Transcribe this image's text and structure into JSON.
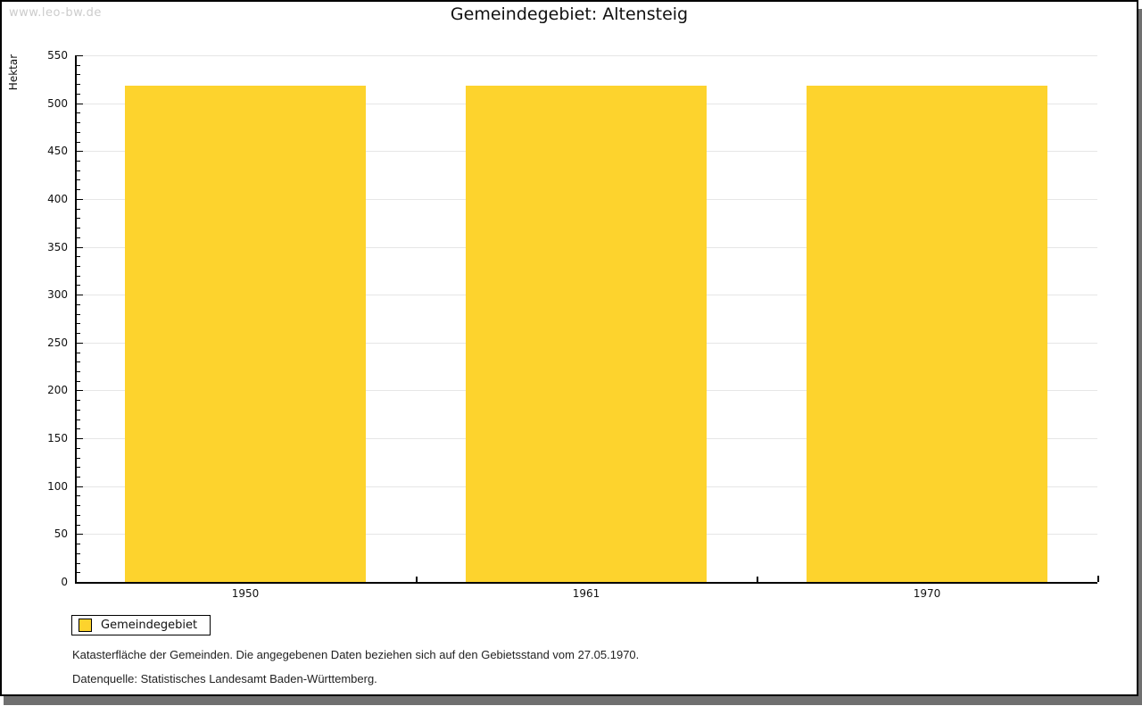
{
  "watermark": "www.leo-bw.de",
  "title": "Gemeindegebiet: Altensteig",
  "chart_data": {
    "type": "bar",
    "title": "Gemeindegebiet: Altensteig",
    "categories": [
      "1950",
      "1961",
      "1970"
    ],
    "series": [
      {
        "name": "Gemeindegebiet",
        "values": [
          518,
          518,
          518
        ]
      }
    ],
    "xlabel": "",
    "ylabel": "Hektar",
    "ylim": [
      0,
      550
    ],
    "y_major_step": 50,
    "y_minor_step": 10,
    "grid": "horizontal-major-gridlines",
    "legend_position": "bottom-left",
    "bar_color": "#FDD32D"
  },
  "legend": {
    "items": [
      {
        "label": "Gemeindegebiet",
        "color": "#FDD32D"
      }
    ]
  },
  "notes": [
    "Katasterfläche der Gemeinden. Die angegebenen Daten beziehen sich auf den Gebietsstand vom 27.05.1970.",
    "Datenquelle: Statistisches Landesamt Baden-Württemberg."
  ],
  "colors": {
    "bar": "#FDD32D",
    "grid": "#E6E6E6",
    "axis": "#000000",
    "watermark": "#CCCCCC",
    "shadow": "#707070"
  }
}
